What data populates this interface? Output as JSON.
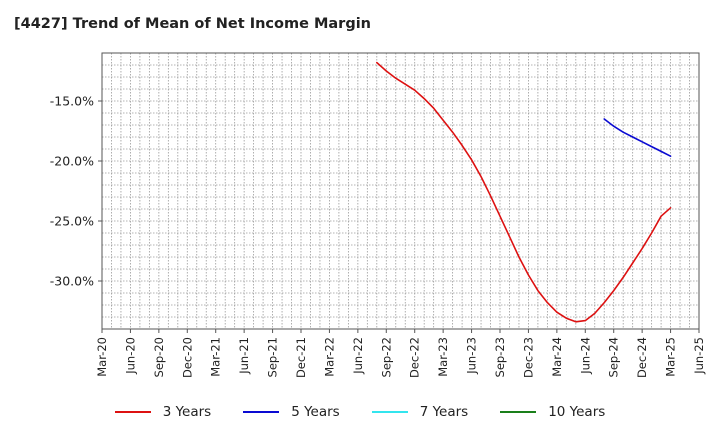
{
  "title": "[4427]  Trend of Mean of Net Income Margin",
  "chart_data": {
    "type": "line",
    "title": "[4427]  Trend of Mean of Net Income Margin",
    "xlabel": "",
    "ylabel": "",
    "x_ticks": [
      "Mar-20",
      "Jun-20",
      "Sep-20",
      "Dec-20",
      "Mar-21",
      "Jun-21",
      "Sep-21",
      "Dec-21",
      "Mar-22",
      "Jun-22",
      "Sep-22",
      "Dec-22",
      "Mar-23",
      "Jun-23",
      "Sep-23",
      "Dec-23",
      "Mar-24",
      "Jun-24",
      "Sep-24",
      "Dec-24",
      "Mar-25",
      "Jun-25"
    ],
    "y_ticks": [
      "-15.0%",
      "-20.0%",
      "-25.0%",
      "-30.0%"
    ],
    "y_tick_values": [
      -15,
      -20,
      -25,
      -30
    ],
    "ylim": [
      -34,
      -11
    ],
    "grid": true,
    "legend_position": "bottom",
    "series": [
      {
        "name": "3 Years",
        "color": "#dd1111",
        "x": [
          "Aug-22",
          "Sep-22",
          "Oct-22",
          "Nov-22",
          "Dec-22",
          "Jan-23",
          "Feb-23",
          "Mar-23",
          "Apr-23",
          "May-23",
          "Jun-23",
          "Jul-23",
          "Aug-23",
          "Sep-23",
          "Oct-23",
          "Nov-23",
          "Dec-23",
          "Jan-24",
          "Feb-24",
          "Mar-24",
          "Apr-24",
          "May-24",
          "Jun-24",
          "Jul-24",
          "Aug-24",
          "Sep-24",
          "Oct-24",
          "Nov-24",
          "Dec-24",
          "Jan-25",
          "Feb-25",
          "Mar-25"
        ],
        "values": [
          -11.8,
          -12.5,
          -13.1,
          -13.6,
          -14.1,
          -14.8,
          -15.6,
          -16.6,
          -17.6,
          -18.7,
          -19.9,
          -21.3,
          -22.9,
          -24.6,
          -26.3,
          -28.0,
          -29.5,
          -30.8,
          -31.8,
          -32.6,
          -33.1,
          -33.4,
          -33.3,
          -32.7,
          -31.8,
          -30.8,
          -29.7,
          -28.5,
          -27.3,
          -26.0,
          -24.6,
          -23.9
        ]
      },
      {
        "name": "5 Years",
        "color": "#0a0ad2",
        "x": [
          "Aug-24",
          "Sep-24",
          "Oct-24",
          "Nov-24",
          "Dec-24",
          "Jan-25",
          "Feb-25",
          "Mar-25"
        ],
        "values": [
          -16.5,
          -17.1,
          -17.6,
          -18.0,
          -18.4,
          -18.8,
          -19.2,
          -19.6
        ]
      },
      {
        "name": "7 Years",
        "color": "#33e5ee",
        "x": [],
        "values": []
      },
      {
        "name": "10 Years",
        "color": "#1a7f1a",
        "x": [],
        "values": []
      }
    ]
  }
}
